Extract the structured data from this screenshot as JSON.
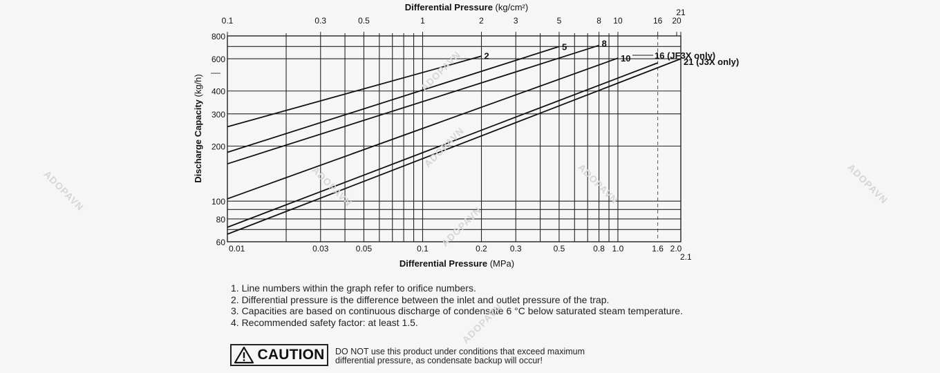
{
  "chart_data": {
    "type": "line",
    "x_scale": "log",
    "y_scale": "log",
    "xlim": [
      0.01,
      2.1
    ],
    "ylim": [
      60,
      800
    ],
    "xlabel": "Differential Pressure",
    "xlabel_unit": "(MPa)",
    "x_top_label": "Differential Pressure",
    "x_top_label_unit": "(kg/cm²)",
    "ylabel": "Discharge Capacity",
    "ylabel_unit": "(kg/h)",
    "x_ticks": [
      {
        "v": 0.01,
        "label": "0.01"
      },
      {
        "v": 0.03,
        "label": "0.03"
      },
      {
        "v": 0.05,
        "label": "0.05"
      },
      {
        "v": 0.1,
        "label": "0.1"
      },
      {
        "v": 0.2,
        "label": "0.2"
      },
      {
        "v": 0.3,
        "label": "0.3"
      },
      {
        "v": 0.5,
        "label": "0.5"
      },
      {
        "v": 0.8,
        "label": "0.8"
      },
      {
        "v": 1.0,
        "label": "1.0"
      },
      {
        "v": 1.6,
        "label": "1.6"
      },
      {
        "v": 2.0,
        "label": "2.0"
      },
      {
        "v": 2.1,
        "label": "2.1"
      }
    ],
    "x_top_ticks": [
      {
        "v": 0.1,
        "label": "0.1"
      },
      {
        "v": 0.3,
        "label": "0.3"
      },
      {
        "v": 0.5,
        "label": "0.5"
      },
      {
        "v": 1,
        "label": "1"
      },
      {
        "v": 2,
        "label": "2"
      },
      {
        "v": 3,
        "label": "3"
      },
      {
        "v": 5,
        "label": "5"
      },
      {
        "v": 8,
        "label": "8"
      },
      {
        "v": 10,
        "label": "10"
      },
      {
        "v": 16,
        "label": "16"
      },
      {
        "v": 20,
        "label": "20"
      },
      {
        "v": 21,
        "label": "21"
      }
    ],
    "y_ticks": [
      {
        "v": 60,
        "label": "60"
      },
      {
        "v": 80,
        "label": "80"
      },
      {
        "v": 100,
        "label": "100"
      },
      {
        "v": 200,
        "label": "200"
      },
      {
        "v": 300,
        "label": "300"
      },
      {
        "v": 400,
        "label": "400"
      },
      {
        "v": 600,
        "label": "600"
      },
      {
        "v": 800,
        "label": "800"
      }
    ],
    "vertical_gridlines": [
      0.02,
      0.03,
      0.04,
      0.05,
      0.06,
      0.07,
      0.08,
      0.09,
      0.1,
      0.2,
      0.3,
      0.4,
      0.5,
      0.6,
      0.7,
      0.8,
      0.9,
      1.0,
      1.6
    ],
    "horizontal_gridlines": [
      70,
      80,
      90,
      100,
      200,
      300,
      400,
      600,
      700
    ],
    "dashed_reference": {
      "x": 1.6,
      "y": 500
    },
    "series": [
      {
        "name": "2",
        "x": [
          0.01,
          0.2
        ],
        "y": [
          255,
          620
        ]
      },
      {
        "name": "5",
        "x": [
          0.01,
          0.5
        ],
        "y": [
          185,
          700
        ]
      },
      {
        "name": "8",
        "x": [
          0.01,
          0.8
        ],
        "y": [
          160,
          710
        ]
      },
      {
        "name": "10",
        "x": [
          0.01,
          1.0
        ],
        "y": [
          103,
          605
        ]
      },
      {
        "name": "16 (JF3X only)",
        "x": [
          0.01,
          1.6
        ],
        "y": [
          72,
          570
        ]
      },
      {
        "name": "21 (J3X only)",
        "x": [
          0.01,
          2.1
        ],
        "y": [
          66,
          600
        ]
      }
    ],
    "grid": true,
    "legend": "inline labels at line ends"
  },
  "notes": [
    "1. Line numbers within the graph refer to orifice numbers.",
    "2. Differential pressure is the difference between the inlet and outlet pressure of the trap.",
    "3. Capacities are based on continuous discharge of condensate 6 °C below saturated steam temperature.",
    "4. Recommended safety factor: at least 1.5."
  ],
  "caution": {
    "label": "CAUTION",
    "line1": "DO NOT use this product under conditions that exceed maximum",
    "line2": "differential pressure, as condensate backup will occur!"
  },
  "watermark": "ADOPAVN"
}
